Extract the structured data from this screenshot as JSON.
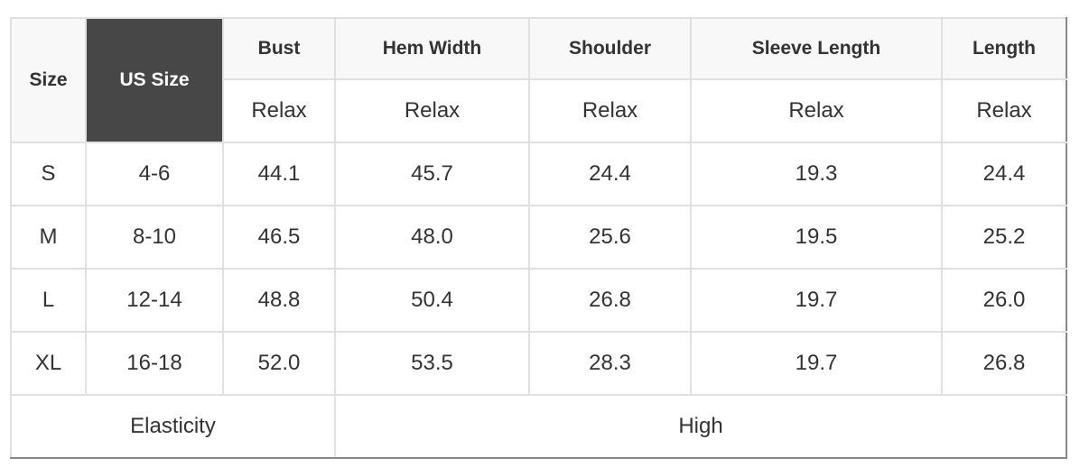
{
  "header": {
    "size": "Size",
    "us_size": "US Size",
    "columns": [
      "Bust",
      "Hem Width",
      "Shoulder",
      "Sleeve Length",
      "Length"
    ],
    "sub": [
      "Relax",
      "Relax",
      "Relax",
      "Relax",
      "Relax"
    ]
  },
  "rows": [
    {
      "size": "S",
      "us": "4-6",
      "values": [
        "44.1",
        "45.7",
        "24.4",
        "19.3",
        "24.4"
      ]
    },
    {
      "size": "M",
      "us": "8-10",
      "values": [
        "46.5",
        "48.0",
        "25.6",
        "19.5",
        "25.2"
      ]
    },
    {
      "size": "L",
      "us": "12-14",
      "values": [
        "48.8",
        "50.4",
        "26.8",
        "19.7",
        "26.0"
      ]
    },
    {
      "size": "XL",
      "us": "16-18",
      "values": [
        "52.0",
        "53.5",
        "28.3",
        "19.7",
        "26.8"
      ]
    }
  ],
  "footer": {
    "label": "Elasticity",
    "value": "High"
  },
  "colors": {
    "dark_header": "#474747",
    "header_bg": "#f8f8f8",
    "border": "#e0e0e0"
  }
}
